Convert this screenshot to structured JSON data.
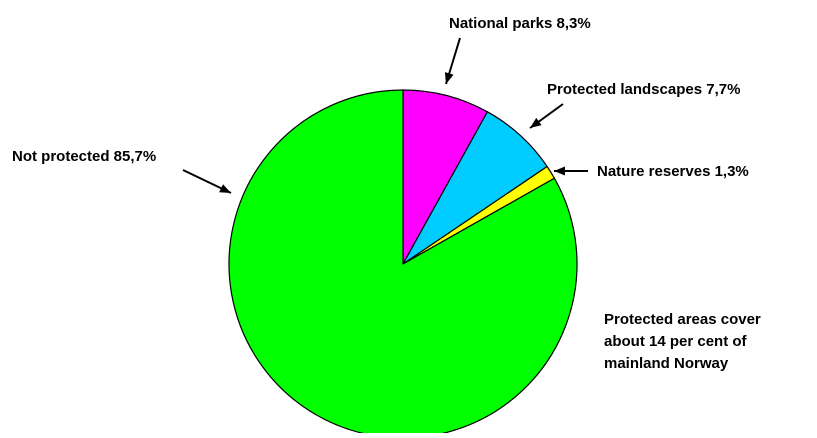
{
  "chart_data": {
    "type": "pie",
    "slices": [
      {
        "label": "National parks",
        "value": 8.3,
        "label_text": "National parks 8,3%",
        "color": "#ff00ff"
      },
      {
        "label": "Protected landscapes",
        "value": 7.7,
        "label_text": "Protected landscapes 7,7%",
        "color": "#00ccff"
      },
      {
        "label": "Nature reserves",
        "value": 1.3,
        "label_text": "Nature reserves 1,3%",
        "color": "#ffff00"
      },
      {
        "label": "Not protected",
        "value": 85.7,
        "label_text": "Not protected 85,7%",
        "color": "#00ff00"
      }
    ],
    "annotation_lines": [
      "Protected areas cover",
      "about 14 per cent of",
      "mainland Norway"
    ],
    "start": "12 o'clock",
    "direction": "clockwise",
    "outline_color": "#000000",
    "legend": "none"
  }
}
